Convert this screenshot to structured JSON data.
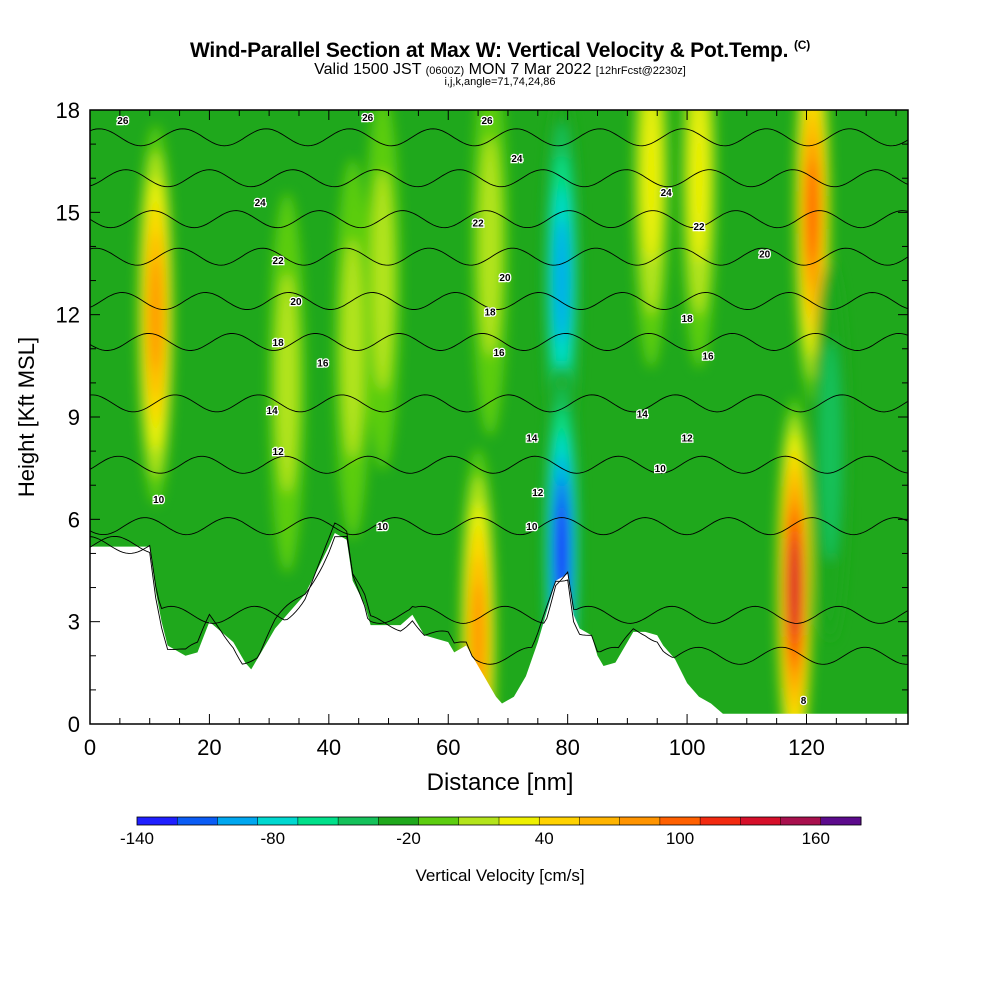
{
  "header": {
    "title": "Wind-Parallel Section at Max W: Vertical Velocity & Pot.Temp.",
    "copyright": "(C)",
    "valid_prefix": "Valid 1500 JST",
    "valid_utc": "(0600Z)",
    "valid_date": "MON 7 Mar 2022",
    "forecast": "[12hrFcst@2230z]",
    "grid_info": "i,j,k,angle=71,74,24,86"
  },
  "chart_data": {
    "type": "heatmap",
    "xlabel": "Distance [nm]",
    "ylabel": "Height [Kft MSL]",
    "xlim": [
      0,
      137
    ],
    "ylim": [
      0,
      18
    ],
    "x_ticks": [
      0,
      20,
      40,
      60,
      80,
      100,
      120
    ],
    "y_ticks": [
      0,
      3,
      6,
      9,
      12,
      15,
      18
    ],
    "colorbar": {
      "label": "Vertical Velocity [cm/s]",
      "min": -140,
      "max": 180,
      "step": 20,
      "tick_values": [
        -140,
        -80,
        -20,
        40,
        100,
        160
      ],
      "tick_labels": [
        "-140",
        "-80",
        "-20",
        "40",
        "100",
        "160"
      ],
      "colors": [
        "#1f1fff",
        "#0a5cf5",
        "#00a7f0",
        "#00d8d0",
        "#00e08a",
        "#14c15a",
        "#1fa81c",
        "#5ccd10",
        "#b3e41a",
        "#eef000",
        "#ffd200",
        "#ffb400",
        "#ff9400",
        "#ff6000",
        "#f22a10",
        "#d60f2a",
        "#a8104d",
        "#5c0a8c"
      ]
    },
    "terrain_kft": [
      [
        0,
        5.2
      ],
      [
        10,
        5.2
      ],
      [
        11,
        3.9
      ],
      [
        12,
        3
      ],
      [
        13,
        2.3
      ],
      [
        16,
        2
      ],
      [
        18,
        2.1
      ],
      [
        20,
        3
      ],
      [
        22,
        2.7
      ],
      [
        24,
        2.4
      ],
      [
        26,
        1.8
      ],
      [
        27,
        1.6
      ],
      [
        29,
        2.2
      ],
      [
        31,
        2.8
      ],
      [
        33,
        3.2
      ],
      [
        36,
        3.8
      ],
      [
        38,
        4.5
      ],
      [
        40,
        5.2
      ],
      [
        41,
        5.6
      ],
      [
        43,
        5.4
      ],
      [
        44,
        4.2
      ],
      [
        46,
        3.5
      ],
      [
        47,
        2.9
      ],
      [
        52,
        2.9
      ],
      [
        54,
        3.2
      ],
      [
        56,
        2.6
      ],
      [
        58,
        2.5
      ],
      [
        60,
        2.4
      ],
      [
        61,
        2.1
      ],
      [
        63,
        2.3
      ],
      [
        65,
        1.7
      ],
      [
        66,
        1.4
      ],
      [
        67,
        1.1
      ],
      [
        68,
        0.8
      ],
      [
        69,
        0.6
      ],
      [
        71,
        0.8
      ],
      [
        73,
        1.4
      ],
      [
        75,
        2.4
      ],
      [
        77,
        3.6
      ],
      [
        78,
        4.2
      ],
      [
        80,
        4.4
      ],
      [
        81,
        3.2
      ],
      [
        82,
        2.8
      ],
      [
        84,
        2.6
      ],
      [
        85,
        2.0
      ],
      [
        86,
        1.7
      ],
      [
        88,
        1.8
      ],
      [
        90,
        2.4
      ],
      [
        91,
        2.7
      ],
      [
        93,
        2.7
      ],
      [
        95,
        2.6
      ],
      [
        96,
        2.3
      ],
      [
        98,
        1.9
      ],
      [
        100,
        1.2
      ],
      [
        102,
        0.8
      ],
      [
        104,
        0.6
      ],
      [
        106,
        0.3
      ],
      [
        120,
        0.3
      ],
      [
        137,
        0.3
      ]
    ],
    "w_features": [
      {
        "x": 11,
        "y": 12,
        "w": 110
      },
      {
        "x": 33,
        "y": 10,
        "w": 35
      },
      {
        "x": 44,
        "y": 11,
        "w": 40
      },
      {
        "x": 49,
        "y": 13,
        "w": 40
      },
      {
        "x": 65,
        "y": 2.5,
        "w": 110
      },
      {
        "x": 67,
        "y": 14,
        "w": 45
      },
      {
        "x": 79,
        "y": 13,
        "w": -90
      },
      {
        "x": 79,
        "y": 5,
        "w": -130
      },
      {
        "x": 94,
        "y": 16,
        "w": 60
      },
      {
        "x": 102,
        "y": 16,
        "w": 55
      },
      {
        "x": 118,
        "y": 4,
        "w": 180
      },
      {
        "x": 121,
        "y": 15,
        "w": 140
      },
      {
        "x": 124,
        "y": 8,
        "w": -30
      }
    ],
    "theta_contours": [
      {
        "value": 6,
        "height_kft": 2.0
      },
      {
        "value": 8,
        "height_kft": 3.2
      },
      {
        "value": 10,
        "height_kft": 5.8
      },
      {
        "value": 12,
        "height_kft": 7.6
      },
      {
        "value": 14,
        "height_kft": 9.4
      },
      {
        "value": 16,
        "height_kft": 11.2
      },
      {
        "value": 18,
        "height_kft": 12.4
      },
      {
        "value": 20,
        "height_kft": 13.7
      },
      {
        "value": 22,
        "height_kft": 14.8
      },
      {
        "value": 24,
        "height_kft": 16.0
      },
      {
        "value": 26,
        "height_kft": 17.2
      }
    ],
    "contour_labels": [
      {
        "text": "26",
        "x": 5.5,
        "y": 17.7
      },
      {
        "text": "26",
        "x": 46.5,
        "y": 17.8
      },
      {
        "text": "26",
        "x": 66.5,
        "y": 17.7
      },
      {
        "text": "24",
        "x": 28.5,
        "y": 15.3
      },
      {
        "text": "24",
        "x": 71.5,
        "y": 16.6
      },
      {
        "text": "24",
        "x": 96.5,
        "y": 15.6
      },
      {
        "text": "22",
        "x": 31.5,
        "y": 13.6
      },
      {
        "text": "22",
        "x": 65,
        "y": 14.7
      },
      {
        "text": "22",
        "x": 102,
        "y": 14.6
      },
      {
        "text": "20",
        "x": 34.5,
        "y": 12.4
      },
      {
        "text": "20",
        "x": 69.5,
        "y": 13.1
      },
      {
        "text": "20",
        "x": 113,
        "y": 13.8
      },
      {
        "text": "18",
        "x": 31.5,
        "y": 11.2
      },
      {
        "text": "18",
        "x": 67,
        "y": 12.1
      },
      {
        "text": "18",
        "x": 100,
        "y": 11.9
      },
      {
        "text": "16",
        "x": 39,
        "y": 10.6
      },
      {
        "text": "16",
        "x": 68.5,
        "y": 10.9
      },
      {
        "text": "16",
        "x": 103.5,
        "y": 10.8
      },
      {
        "text": "14",
        "x": 30.5,
        "y": 9.2
      },
      {
        "text": "14",
        "x": 74,
        "y": 8.4
      },
      {
        "text": "14",
        "x": 92.5,
        "y": 9.1
      },
      {
        "text": "12",
        "x": 31.5,
        "y": 8.0
      },
      {
        "text": "12",
        "x": 75,
        "y": 6.8
      },
      {
        "text": "12",
        "x": 100,
        "y": 8.4
      },
      {
        "text": "10",
        "x": 11.5,
        "y": 6.6
      },
      {
        "text": "10",
        "x": 49,
        "y": 5.8
      },
      {
        "text": "10",
        "x": 74,
        "y": 5.8
      },
      {
        "text": "10",
        "x": 95.5,
        "y": 7.5
      },
      {
        "text": "8",
        "x": 119.5,
        "y": 0.7
      }
    ]
  }
}
